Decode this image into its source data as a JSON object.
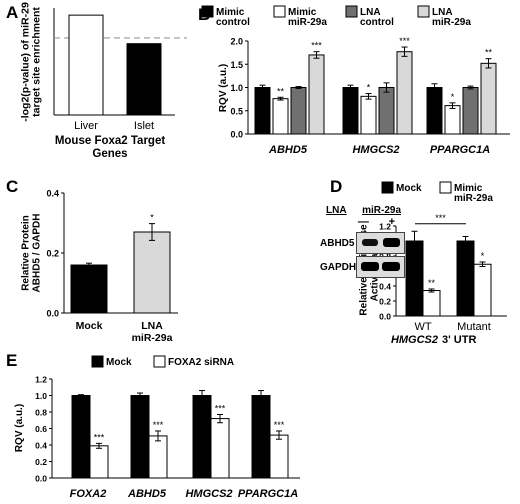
{
  "panel_letters": [
    "A",
    "B",
    "C",
    "D",
    "E"
  ],
  "blot": {
    "header_left": "LNA",
    "header_right": "miR-29a",
    "lane_signs": [
      "—",
      "+"
    ],
    "rows": [
      "ABHD5",
      "GAPDH"
    ]
  },
  "chart_data": [
    {
      "panel": "A",
      "type": "bar",
      "categories": [
        "Liver",
        "Islet"
      ],
      "values": [
        5.6,
        4.0
      ],
      "bar_colors": [
        "#ffffff",
        "#000000"
      ],
      "ylabel_lines": [
        "-log2(p-value) of miR-29",
        "target site enrichment"
      ],
      "xlabel_lines": [
        "Mouse Foxa2 Target",
        "Genes"
      ],
      "ylim": [
        0,
        6
      ],
      "dashed_threshold": 4.32
    },
    {
      "panel": "B",
      "type": "bar",
      "categories": [
        "ABHD5",
        "HMGCS2",
        "PPARGC1A"
      ],
      "series": [
        {
          "name": "Mimic control",
          "color": "#000000",
          "values": [
            1.0,
            1.0,
            1.0
          ],
          "errors": [
            0.05,
            0.05,
            0.08
          ],
          "sig": [
            "",
            "",
            ""
          ]
        },
        {
          "name": "Mimic miR-29a",
          "color": "#ffffff",
          "values": [
            0.76,
            0.81,
            0.61
          ],
          "errors": [
            0.03,
            0.06,
            0.06
          ],
          "sig": [
            "**",
            "*",
            "*"
          ]
        },
        {
          "name": "LNA control",
          "color": "#707070",
          "values": [
            1.0,
            1.0,
            1.0
          ],
          "errors": [
            0.02,
            0.1,
            0.03
          ],
          "sig": [
            "",
            "",
            ""
          ]
        },
        {
          "name": "LNA miR-29a",
          "color": "#d9d9d9",
          "values": [
            1.7,
            1.77,
            1.52
          ],
          "errors": [
            0.07,
            0.1,
            0.1
          ],
          "sig": [
            "***",
            "***",
            "**"
          ]
        }
      ],
      "legend": [
        {
          "lines": [
            "Mimic",
            "control"
          ],
          "color": "#000000"
        },
        {
          "lines": [
            "Mimic",
            "miR-29a"
          ],
          "color": "#ffffff"
        },
        {
          "lines": [
            "LNA",
            "control"
          ],
          "color": "#707070"
        },
        {
          "lines": [
            "LNA",
            "miR-29a"
          ],
          "color": "#d9d9d9"
        }
      ],
      "ylabel": "RQV (a.u.)",
      "ylim": [
        0,
        2.0
      ],
      "yticks": [
        "0.0",
        "0.5",
        "1.0",
        "1.5",
        "2.0"
      ]
    },
    {
      "panel": "C",
      "type": "bar",
      "categories": [
        [
          "Mock"
        ],
        [
          "LNA",
          "miR-29a"
        ]
      ],
      "values": [
        0.16,
        0.27
      ],
      "errors": [
        0.006,
        0.028
      ],
      "sig": [
        "",
        "*"
      ],
      "bar_colors": [
        "#000000",
        "#d9d9d9"
      ],
      "ylabel_lines": [
        "Relative Protein",
        "ABHD5 / GAPDH"
      ],
      "ylim": [
        0,
        0.4
      ],
      "yticks": [
        "0.0",
        "0.2",
        "0.4"
      ]
    },
    {
      "panel": "D",
      "type": "bar",
      "groups": [
        "WT",
        "Mutant"
      ],
      "group_caption": "3' UTR",
      "group_caption_italic": "HMGCS2",
      "series": [
        {
          "name": "Mock",
          "color": "#000000",
          "values": [
            1.0,
            1.0
          ],
          "errors": [
            0.13,
            0.06
          ],
          "sig": [
            "",
            ""
          ]
        },
        {
          "name": "Mimic miR-29a",
          "color": "#ffffff",
          "values": [
            0.34,
            0.69
          ],
          "errors": [
            0.02,
            0.03
          ],
          "sig": [
            "**",
            "*"
          ]
        }
      ],
      "legend": [
        {
          "lines": [
            "Mock"
          ],
          "color": "#000000"
        },
        {
          "lines": [
            "Mimic",
            "miR-29a"
          ],
          "color": "#ffffff"
        }
      ],
      "bracket_sig": "***",
      "ylabel_lines": [
        "Relative Luciferase",
        "Activity (a.u.)"
      ],
      "ylim": [
        0,
        1.2
      ],
      "yticks": [
        "0.0",
        "0.2",
        "0.4",
        "0.6",
        "0.8",
        "1.0",
        "1.2"
      ]
    },
    {
      "panel": "E",
      "type": "bar",
      "categories": [
        "FOXA2",
        "ABHD5",
        "HMGCS2",
        "PPARGC1A"
      ],
      "series": [
        {
          "name": "Mock",
          "color": "#000000",
          "values": [
            1.0,
            1.0,
            1.0,
            1.0
          ],
          "errors": [
            0.01,
            0.03,
            0.06,
            0.06
          ],
          "sig": [
            "",
            "",
            "",
            ""
          ]
        },
        {
          "name": "FOXA2 siRNA",
          "color": "#ffffff",
          "values": [
            0.39,
            0.51,
            0.72,
            0.52
          ],
          "errors": [
            0.03,
            0.06,
            0.05,
            0.05
          ],
          "sig": [
            "***",
            "***",
            "***",
            "***"
          ]
        }
      ],
      "legend": [
        {
          "lines": [
            "Mock"
          ],
          "color": "#000000"
        },
        {
          "lines": [
            "FOXA2 siRNA"
          ],
          "color": "#ffffff"
        }
      ],
      "ylabel": "RQV (a.u.)",
      "ylim": [
        0,
        1.2
      ],
      "yticks": [
        "0.0",
        "0.2",
        "0.4",
        "0.6",
        "0.8",
        "1.0",
        "1.2"
      ]
    }
  ]
}
